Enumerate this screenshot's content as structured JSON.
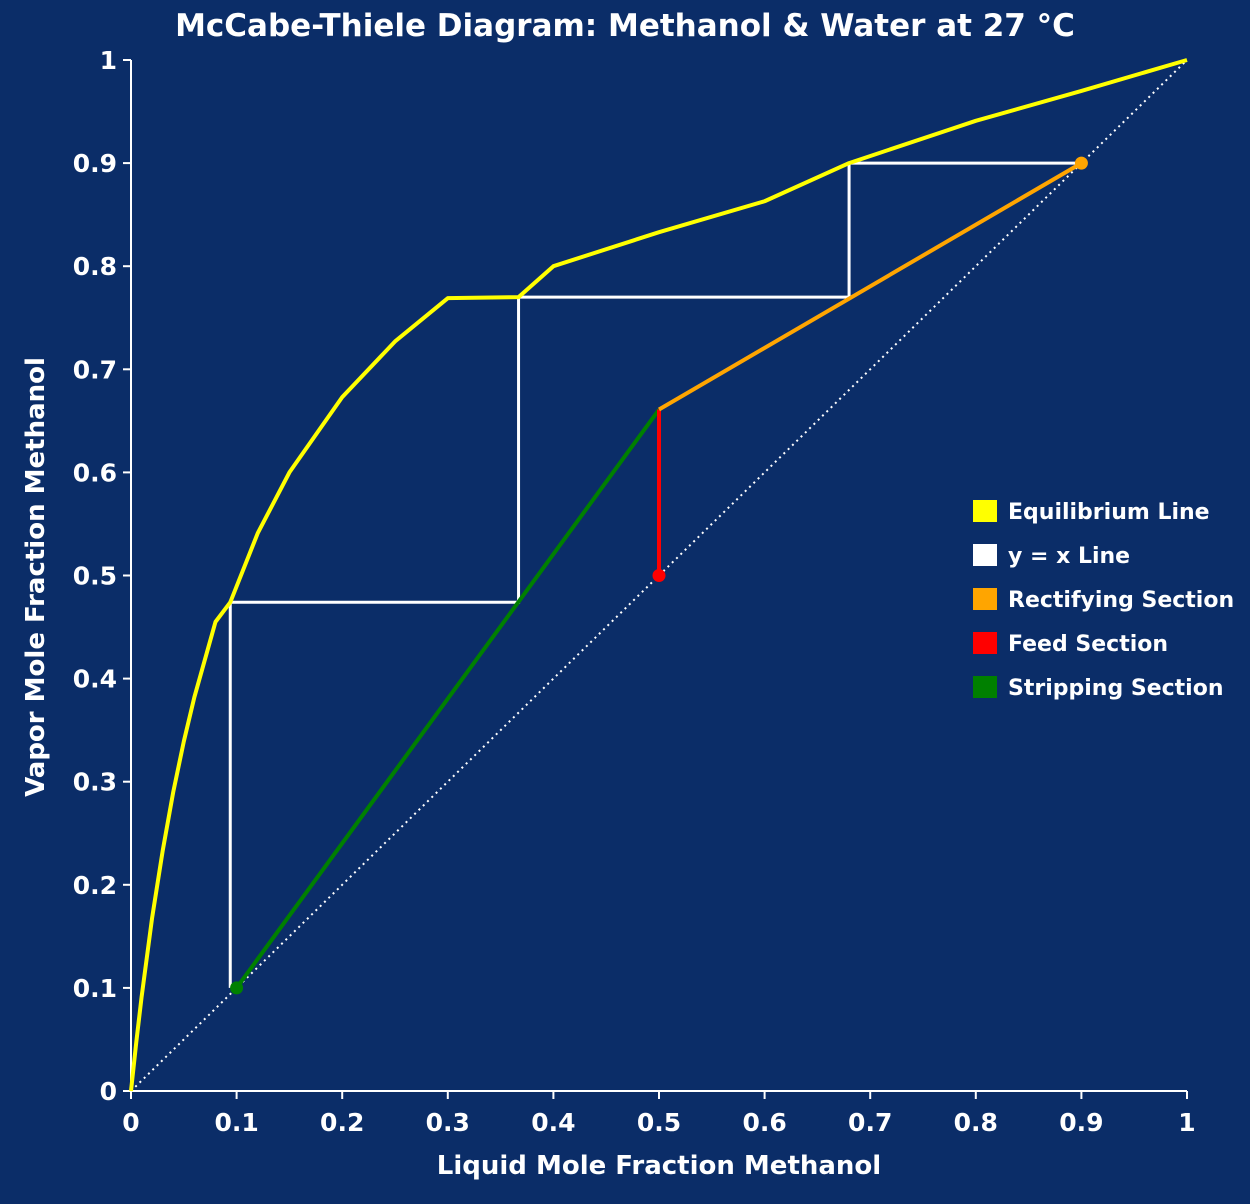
{
  "chart_data": {
    "type": "line",
    "title": "McCabe-Thiele Diagram: Methanol & Water at 27 °C",
    "xlabel": "Liquid Mole Fraction Methanol",
    "ylabel": "Vapor Mole Fraction Methanol",
    "xlim": [
      0,
      1
    ],
    "ylim": [
      0,
      1
    ],
    "x_ticks": [
      "0",
      "0.1",
      "0.2",
      "0.3",
      "0.4",
      "0.5",
      "0.6",
      "0.7",
      "0.8",
      "0.9",
      "1"
    ],
    "y_ticks": [
      "0",
      "0.1",
      "0.2",
      "0.3",
      "0.4",
      "0.5",
      "0.6",
      "0.7",
      "0.8",
      "0.9",
      "1"
    ],
    "grid": false,
    "legend_position": "right",
    "colors": {
      "background": "#0b2d68",
      "equilibrium": "#ffff00",
      "yx": "#ffffff",
      "rectifying": "#ffa500",
      "feed": "#ff0000",
      "stripping": "#008000",
      "stages": "#ffffff"
    },
    "series": [
      {
        "name": "Equilibrium Line",
        "key": "equilibrium",
        "x": [
          0,
          0.005,
          0.01,
          0.02,
          0.03,
          0.04,
          0.05,
          0.06,
          0.08,
          0.094,
          0.12,
          0.15,
          0.2,
          0.25,
          0.3,
          0.367,
          0.4,
          0.5,
          0.6,
          0.68,
          0.8,
          0.9,
          1.0
        ],
        "y": [
          0,
          0.0474,
          0.0909,
          0.168,
          0.233,
          0.29,
          0.339,
          0.382,
          0.455,
          0.474,
          0.541,
          0.6,
          0.673,
          0.727,
          0.769,
          0.77,
          0.8,
          0.833,
          0.863,
          0.9,
          0.941,
          0.97,
          1.0
        ]
      },
      {
        "name": "y = x Line",
        "key": "yx",
        "x": [
          0,
          1
        ],
        "y": [
          0,
          1
        ]
      },
      {
        "name": "Rectifying Section",
        "key": "rectifying",
        "x": [
          0.5,
          0.9
        ],
        "y": [
          0.661,
          0.9
        ]
      },
      {
        "name": "Feed Section",
        "key": "feed",
        "x": [
          0.5,
          0.5
        ],
        "y": [
          0.5,
          0.661
        ]
      },
      {
        "name": "Stripping Section",
        "key": "stripping",
        "x": [
          0.1,
          0.5
        ],
        "y": [
          0.1,
          0.661
        ]
      }
    ],
    "stages": {
      "x": [
        0.9,
        0.68,
        0.68,
        0.367,
        0.367,
        0.094,
        0.094
      ],
      "y": [
        0.9,
        0.9,
        0.77,
        0.77,
        0.474,
        0.474,
        0.1
      ]
    },
    "points": [
      {
        "x": 0.9,
        "y": 0.9,
        "key": "rectifying"
      },
      {
        "x": 0.5,
        "y": 0.5,
        "key": "feed"
      },
      {
        "x": 0.1,
        "y": 0.1,
        "key": "stripping"
      }
    ]
  }
}
